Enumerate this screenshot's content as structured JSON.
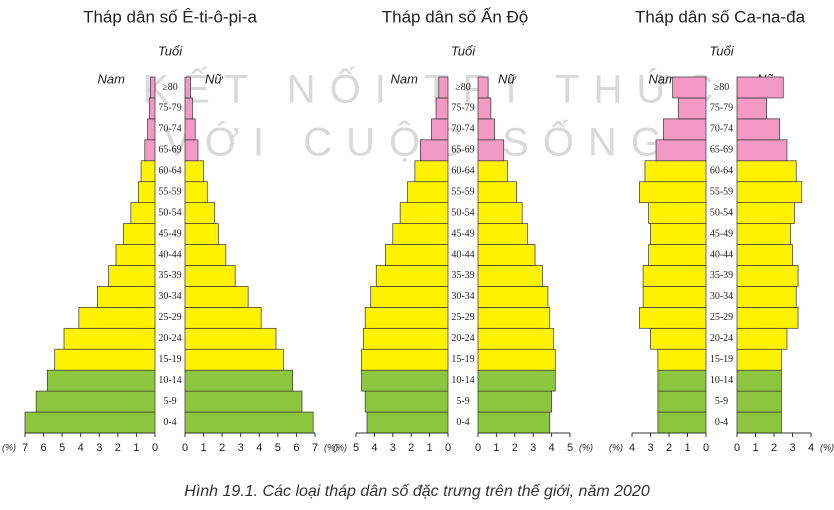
{
  "chart_data": [
    {
      "type": "pyramid",
      "title": "Tháp dân số Ê-ti-ô-pi-a",
      "y_label": "Tuổi",
      "x_unit": "(%)",
      "categories": [
        "0-4",
        "5-9",
        "10-14",
        "15-19",
        "20-24",
        "25-29",
        "30-34",
        "35-39",
        "40-44",
        "45-49",
        "50-54",
        "55-59",
        "60-64",
        "65-69",
        "70-74",
        "75-79",
        "≥80"
      ],
      "category_colors": [
        "#8cc63e",
        "#8cc63e",
        "#8cc63e",
        "#fff200",
        "#fff200",
        "#fff200",
        "#fff200",
        "#fff200",
        "#fff200",
        "#fff200",
        "#fff200",
        "#fff200",
        "#fff200",
        "#f39ac4",
        "#f39ac4",
        "#f39ac4",
        "#f39ac4"
      ],
      "series": [
        {
          "name": "Nam",
          "values": [
            7.0,
            6.4,
            5.8,
            5.4,
            4.9,
            4.1,
            3.1,
            2.5,
            2.1,
            1.7,
            1.3,
            0.9,
            0.75,
            0.55,
            0.4,
            0.3,
            0.25
          ]
        },
        {
          "name": "Nữ",
          "values": [
            6.9,
            6.3,
            5.8,
            5.3,
            4.9,
            4.1,
            3.4,
            2.7,
            2.2,
            1.8,
            1.6,
            1.2,
            1.0,
            0.7,
            0.55,
            0.4,
            0.3
          ]
        }
      ],
      "xlim": [
        0,
        7
      ],
      "xticks": [
        0,
        1,
        2,
        3,
        4,
        5,
        6,
        7
      ]
    },
    {
      "type": "pyramid",
      "title": "Tháp dân số Ấn Độ",
      "y_label": "Tuổi",
      "x_unit": "(%)",
      "categories": [
        "0-4",
        "5-9",
        "10-14",
        "15-19",
        "20-24",
        "25-29",
        "30-34",
        "35-39",
        "40-44",
        "45-49",
        "50-54",
        "55-59",
        "60-64",
        "65-69",
        "70-74",
        "75-79",
        "≥80"
      ],
      "category_colors": [
        "#8cc63e",
        "#8cc63e",
        "#8cc63e",
        "#fff200",
        "#fff200",
        "#fff200",
        "#fff200",
        "#fff200",
        "#fff200",
        "#fff200",
        "#fff200",
        "#fff200",
        "#fff200",
        "#f39ac4",
        "#f39ac4",
        "#f39ac4",
        "#f39ac4"
      ],
      "series": [
        {
          "name": "Nam",
          "values": [
            4.4,
            4.5,
            4.7,
            4.7,
            4.6,
            4.5,
            4.2,
            3.9,
            3.4,
            3.0,
            2.6,
            2.2,
            1.8,
            1.5,
            0.9,
            0.65,
            0.5
          ]
        },
        {
          "name": "Nữ",
          "values": [
            3.9,
            4.0,
            4.2,
            4.2,
            4.1,
            3.9,
            3.8,
            3.5,
            3.1,
            2.7,
            2.4,
            2.1,
            1.6,
            1.4,
            0.9,
            0.7,
            0.55
          ]
        }
      ],
      "xlim": [
        0,
        5
      ],
      "xticks": [
        0,
        1,
        2,
        3,
        4,
        5
      ]
    },
    {
      "type": "pyramid",
      "title": "Tháp dân số Ca-na-đa",
      "y_label": "Tuổi",
      "x_unit": "(%)",
      "categories": [
        "0-4",
        "5-9",
        "10-14",
        "15-19",
        "20-24",
        "25-29",
        "30-34",
        "35-39",
        "40-44",
        "45-49",
        "50-54",
        "55-59",
        "60-64",
        "65-69",
        "70-74",
        "75-79",
        "≥80"
      ],
      "category_colors": [
        "#8cc63e",
        "#8cc63e",
        "#8cc63e",
        "#fff200",
        "#fff200",
        "#fff200",
        "#fff200",
        "#fff200",
        "#fff200",
        "#fff200",
        "#fff200",
        "#fff200",
        "#fff200",
        "#f39ac4",
        "#f39ac4",
        "#f39ac4",
        "#f39ac4"
      ],
      "series": [
        {
          "name": "Nam",
          "values": [
            2.6,
            2.6,
            2.6,
            2.6,
            3.0,
            3.6,
            3.4,
            3.4,
            3.1,
            3.0,
            3.1,
            3.6,
            3.3,
            2.7,
            2.3,
            1.5,
            1.8
          ]
        },
        {
          "name": "Nữ",
          "values": [
            2.4,
            2.4,
            2.4,
            2.4,
            2.7,
            3.3,
            3.2,
            3.3,
            3.0,
            2.9,
            3.1,
            3.5,
            3.2,
            2.7,
            2.3,
            1.6,
            2.5
          ]
        }
      ],
      "xlim": [
        0,
        4
      ],
      "xticks": [
        0,
        1,
        2,
        3,
        4
      ]
    }
  ],
  "watermark": [
    "KẾT NỐI TRI THỨC",
    "VỚI CUỘC SỐNG"
  ],
  "caption": "Hình 19.1. Các loại tháp dân số đặc trưng trên thế giới, năm 2020"
}
